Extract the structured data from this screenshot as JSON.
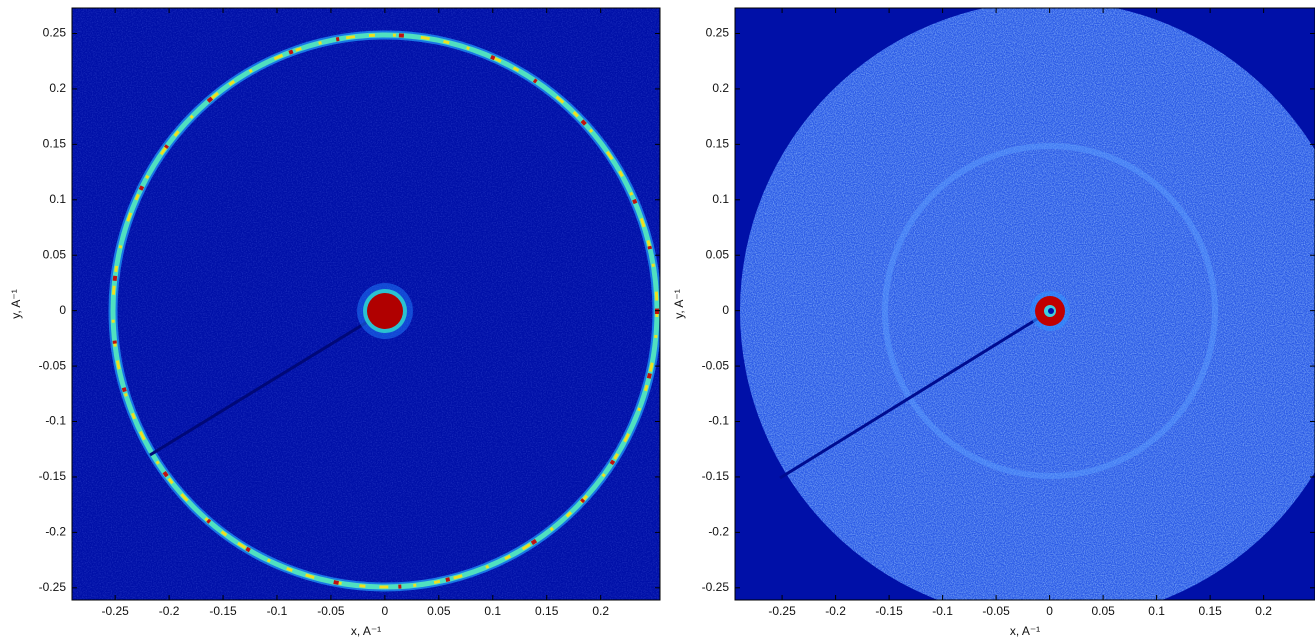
{
  "chart_data": [
    {
      "type": "heatmap",
      "xlabel": "x, A⁻¹",
      "ylabel": "y, A⁻¹",
      "xlim": [
        -0.29,
        0.255
      ],
      "ylim": [
        -0.261,
        0.273
      ],
      "xticks": [
        -0.25,
        -0.2,
        -0.15,
        -0.1,
        -0.05,
        0,
        0.05,
        0.1,
        0.15,
        0.2
      ],
      "yticks": [
        -0.25,
        -0.2,
        -0.15,
        -0.1,
        -0.05,
        0,
        0.05,
        0.1,
        0.15,
        0.2,
        0.25
      ]
    },
    {
      "type": "heatmap",
      "xlabel": "x, A⁻¹",
      "ylabel": "y, A⁻¹",
      "xlim": [
        -0.294,
        0.248
      ],
      "ylim": [
        -0.261,
        0.273
      ],
      "xticks": [
        -0.25,
        -0.2,
        -0.15,
        -0.1,
        -0.05,
        0,
        0.05,
        0.1,
        0.15,
        0.2
      ],
      "yticks": [
        -0.25,
        -0.2,
        -0.15,
        -0.1,
        -0.05,
        0,
        0.05,
        0.1,
        0.15,
        0.2,
        0.25
      ]
    }
  ]
}
